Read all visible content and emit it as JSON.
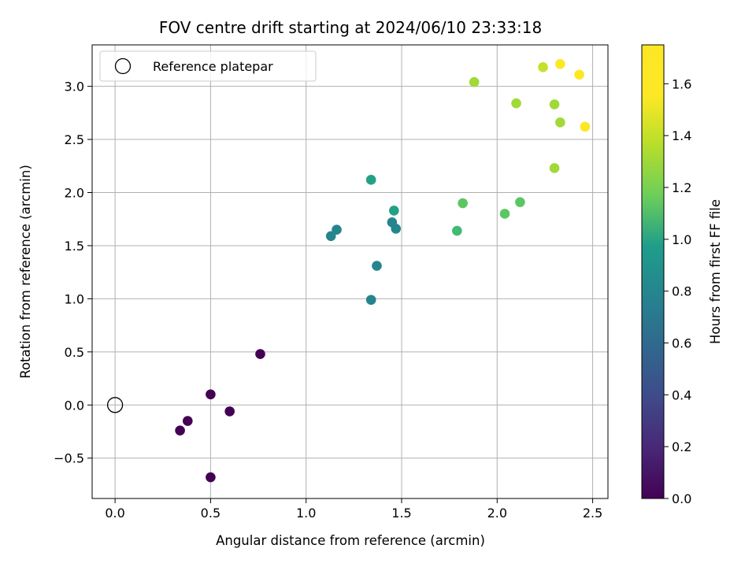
{
  "chart_data": {
    "type": "scatter",
    "title": "FOV centre drift starting at 2024/06/10 23:33:18",
    "xlabel": "Angular distance from reference (arcmin)",
    "ylabel": "Rotation from reference (arcmin)",
    "xlim": [
      -0.12,
      2.58
    ],
    "ylim": [
      -0.88,
      3.39
    ],
    "xticks": [
      0.0,
      0.5,
      1.0,
      1.5,
      2.0,
      2.5
    ],
    "xtick_labels": [
      "0.0",
      "0.5",
      "1.0",
      "1.5",
      "2.0",
      "2.5"
    ],
    "yticks": [
      -0.5,
      0.0,
      0.5,
      1.0,
      1.5,
      2.0,
      2.5,
      3.0
    ],
    "ytick_labels": [
      "−0.5",
      "0.0",
      "0.5",
      "1.0",
      "1.5",
      "2.0",
      "2.5",
      "3.0"
    ],
    "grid": true,
    "legend": {
      "placement": "upper-left",
      "entries": [
        {
          "label": "Reference platepar",
          "marker": "open-circle",
          "x": 0.0,
          "y": 0.0
        }
      ]
    },
    "colorbar": {
      "label": "Hours from first FF file",
      "colormap": "viridis",
      "range": [
        0.0,
        1.75
      ],
      "ticks": [
        0.0,
        0.2,
        0.4,
        0.6,
        0.8,
        1.0,
        1.2,
        1.4,
        1.6
      ],
      "tick_labels": [
        "0.0",
        "0.2",
        "0.4",
        "0.6",
        "0.8",
        "1.0",
        "1.2",
        "1.4",
        "1.6"
      ]
    },
    "points": [
      {
        "x": 0.34,
        "y": -0.24,
        "hours": 0.0
      },
      {
        "x": 0.38,
        "y": -0.15,
        "hours": 0.0
      },
      {
        "x": 0.5,
        "y": 0.1,
        "hours": 0.0
      },
      {
        "x": 0.6,
        "y": -0.06,
        "hours": 0.0
      },
      {
        "x": 0.5,
        "y": -0.68,
        "hours": 0.0
      },
      {
        "x": 0.76,
        "y": 0.48,
        "hours": 0.0
      },
      {
        "x": 1.34,
        "y": 0.99,
        "hours": 0.8
      },
      {
        "x": 1.37,
        "y": 1.31,
        "hours": 0.8
      },
      {
        "x": 1.13,
        "y": 1.59,
        "hours": 0.8
      },
      {
        "x": 1.16,
        "y": 1.65,
        "hours": 0.8
      },
      {
        "x": 1.45,
        "y": 1.72,
        "hours": 0.8
      },
      {
        "x": 1.47,
        "y": 1.66,
        "hours": 0.8
      },
      {
        "x": 1.34,
        "y": 2.12,
        "hours": 1.0
      },
      {
        "x": 1.46,
        "y": 1.83,
        "hours": 1.0
      },
      {
        "x": 1.79,
        "y": 1.64,
        "hours": 1.2
      },
      {
        "x": 1.82,
        "y": 1.9,
        "hours": 1.3
      },
      {
        "x": 2.04,
        "y": 1.8,
        "hours": 1.3
      },
      {
        "x": 2.12,
        "y": 1.91,
        "hours": 1.3
      },
      {
        "x": 1.88,
        "y": 3.04,
        "hours": 1.5
      },
      {
        "x": 2.1,
        "y": 2.84,
        "hours": 1.5
      },
      {
        "x": 2.3,
        "y": 2.23,
        "hours": 1.5
      },
      {
        "x": 2.3,
        "y": 2.83,
        "hours": 1.5
      },
      {
        "x": 2.33,
        "y": 2.66,
        "hours": 1.5
      },
      {
        "x": 2.24,
        "y": 3.18,
        "hours": 1.6
      },
      {
        "x": 2.33,
        "y": 3.21,
        "hours": 1.75
      },
      {
        "x": 2.43,
        "y": 3.11,
        "hours": 1.75
      },
      {
        "x": 2.46,
        "y": 2.62,
        "hours": 1.75
      }
    ]
  }
}
